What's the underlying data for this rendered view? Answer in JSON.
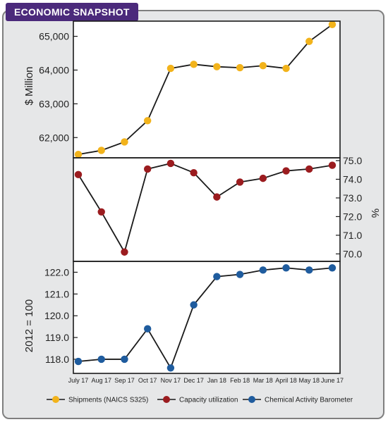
{
  "header": {
    "title": "ECONOMIC SNAPSHOT"
  },
  "chart_data": {
    "type": "line",
    "categories": [
      "July 17",
      "Aug 17",
      "Sep 17",
      "Oct 17",
      "Nov 17",
      "Dec 17",
      "Jan 18",
      "Feb 18",
      "Mar 18",
      "April 18",
      "May 18",
      "June 17"
    ],
    "panels": [
      {
        "ylabel": "$ Million",
        "ylim": [
          61400,
          65450
        ],
        "ticks": [
          62000,
          63000,
          64000,
          65000
        ],
        "tick_labels": [
          "62,000",
          "63,000",
          "64,000",
          "65,000"
        ],
        "axis_side": "left",
        "series": [
          {
            "name": "Shipments (NAICS S325)",
            "color": "#f2b31b",
            "values": [
              61500,
              61620,
              61870,
              62500,
              64050,
              64170,
              64100,
              64070,
              64130,
              64050,
              64850,
              65350
            ]
          }
        ]
      },
      {
        "ylabel": "%",
        "ylim": [
          69.6,
          75.15
        ],
        "ticks": [
          70.0,
          71.0,
          72.0,
          73.0,
          74.0,
          75.0
        ],
        "tick_labels": [
          "70.0",
          "71.0",
          "72.0",
          "73.0",
          "74.0",
          "75.0"
        ],
        "axis_side": "right",
        "series": [
          {
            "name": "Capacity utilization",
            "color": "#9b1c1f",
            "values": [
              74.25,
              72.25,
              70.1,
              74.55,
              74.85,
              74.35,
              73.05,
              73.85,
              74.05,
              74.45,
              74.55,
              74.75
            ]
          }
        ]
      },
      {
        "ylabel": "2012 = 100",
        "ylim": [
          117.35,
          122.5
        ],
        "ticks": [
          118.0,
          119.0,
          120.0,
          121.0,
          122.0
        ],
        "tick_labels": [
          "118.0",
          "119.0",
          "120.0",
          "121.0",
          "122.0"
        ],
        "axis_side": "left",
        "series": [
          {
            "name": "Chemical Activity Barometer",
            "color": "#1f5c9e",
            "values": [
              117.9,
              118.0,
              118.0,
              119.4,
              117.6,
              120.5,
              121.8,
              121.9,
              122.1,
              122.2,
              122.1,
              122.2
            ]
          }
        ]
      }
    ],
    "legend": [
      "Shipments (NAICS S325)",
      "Capacity utilization",
      "Chemical Activity Barometer"
    ],
    "legend_position": "bottom"
  }
}
